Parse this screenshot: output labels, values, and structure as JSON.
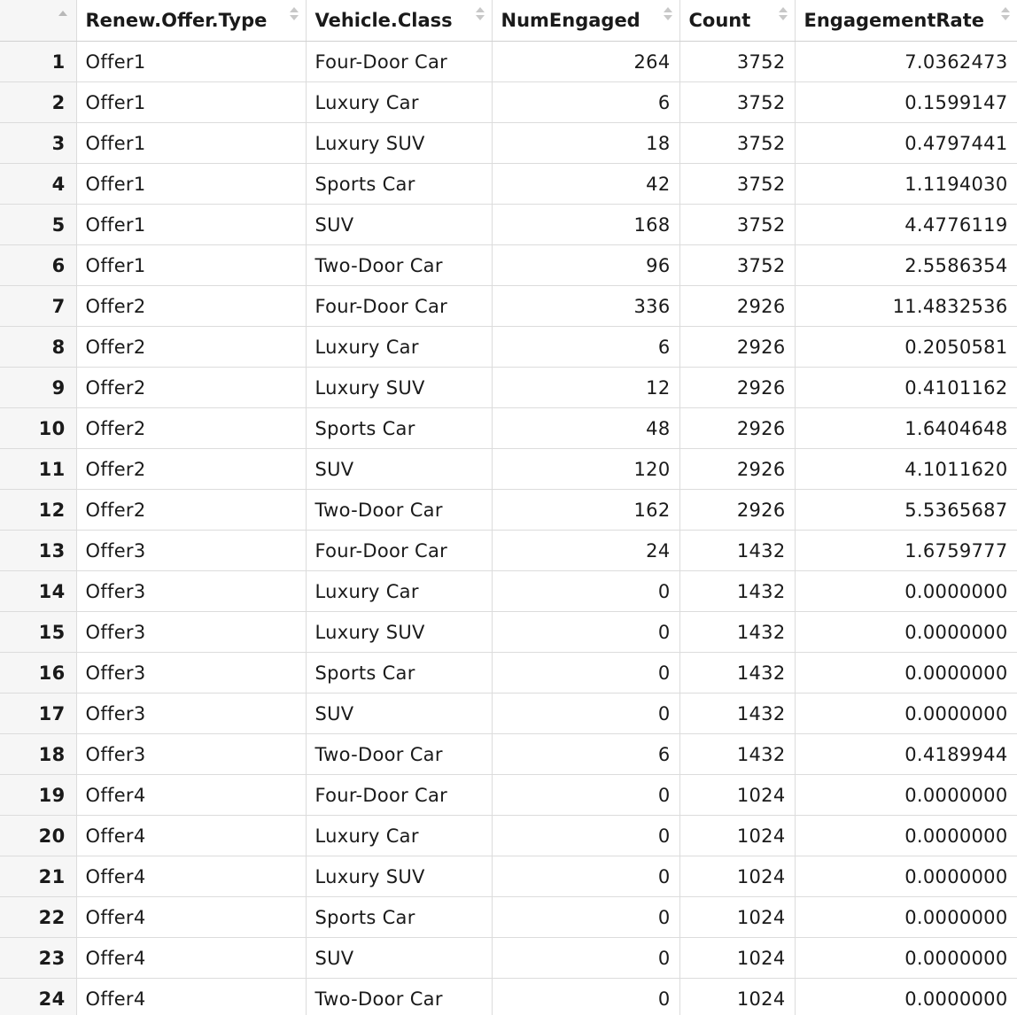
{
  "table": {
    "columns": [
      "",
      "Renew.Offer.Type",
      "Vehicle.Class",
      "NumEngaged",
      "Count",
      "EngagementRate"
    ],
    "rows": [
      [
        "1",
        "Offer1",
        "Four-Door Car",
        "264",
        "3752",
        "7.0362473"
      ],
      [
        "2",
        "Offer1",
        "Luxury Car",
        "6",
        "3752",
        "0.1599147"
      ],
      [
        "3",
        "Offer1",
        "Luxury SUV",
        "18",
        "3752",
        "0.4797441"
      ],
      [
        "4",
        "Offer1",
        "Sports Car",
        "42",
        "3752",
        "1.1194030"
      ],
      [
        "5",
        "Offer1",
        "SUV",
        "168",
        "3752",
        "4.4776119"
      ],
      [
        "6",
        "Offer1",
        "Two-Door Car",
        "96",
        "3752",
        "2.5586354"
      ],
      [
        "7",
        "Offer2",
        "Four-Door Car",
        "336",
        "2926",
        "11.4832536"
      ],
      [
        "8",
        "Offer2",
        "Luxury Car",
        "6",
        "2926",
        "0.2050581"
      ],
      [
        "9",
        "Offer2",
        "Luxury SUV",
        "12",
        "2926",
        "0.4101162"
      ],
      [
        "10",
        "Offer2",
        "Sports Car",
        "48",
        "2926",
        "1.6404648"
      ],
      [
        "11",
        "Offer2",
        "SUV",
        "120",
        "2926",
        "4.1011620"
      ],
      [
        "12",
        "Offer2",
        "Two-Door Car",
        "162",
        "2926",
        "5.5365687"
      ],
      [
        "13",
        "Offer3",
        "Four-Door Car",
        "24",
        "1432",
        "1.6759777"
      ],
      [
        "14",
        "Offer3",
        "Luxury Car",
        "0",
        "1432",
        "0.0000000"
      ],
      [
        "15",
        "Offer3",
        "Luxury SUV",
        "0",
        "1432",
        "0.0000000"
      ],
      [
        "16",
        "Offer3",
        "Sports Car",
        "0",
        "1432",
        "0.0000000"
      ],
      [
        "17",
        "Offer3",
        "SUV",
        "0",
        "1432",
        "0.0000000"
      ],
      [
        "18",
        "Offer3",
        "Two-Door Car",
        "6",
        "1432",
        "0.4189944"
      ],
      [
        "19",
        "Offer4",
        "Four-Door Car",
        "0",
        "1024",
        "0.0000000"
      ],
      [
        "20",
        "Offer4",
        "Luxury Car",
        "0",
        "1024",
        "0.0000000"
      ],
      [
        "21",
        "Offer4",
        "Luxury SUV",
        "0",
        "1024",
        "0.0000000"
      ],
      [
        "22",
        "Offer4",
        "Sports Car",
        "0",
        "1024",
        "0.0000000"
      ],
      [
        "23",
        "Offer4",
        "SUV",
        "0",
        "1024",
        "0.0000000"
      ],
      [
        "24",
        "Offer4",
        "Two-Door Car",
        "0",
        "1024",
        "0.0000000"
      ]
    ]
  },
  "icons": {
    "sort": "sort-arrows-icon"
  },
  "colors": {
    "index_background": "#f6f6f6",
    "grid_line": "#dcdcdc",
    "sort_arrow": "#c8c8c8"
  }
}
